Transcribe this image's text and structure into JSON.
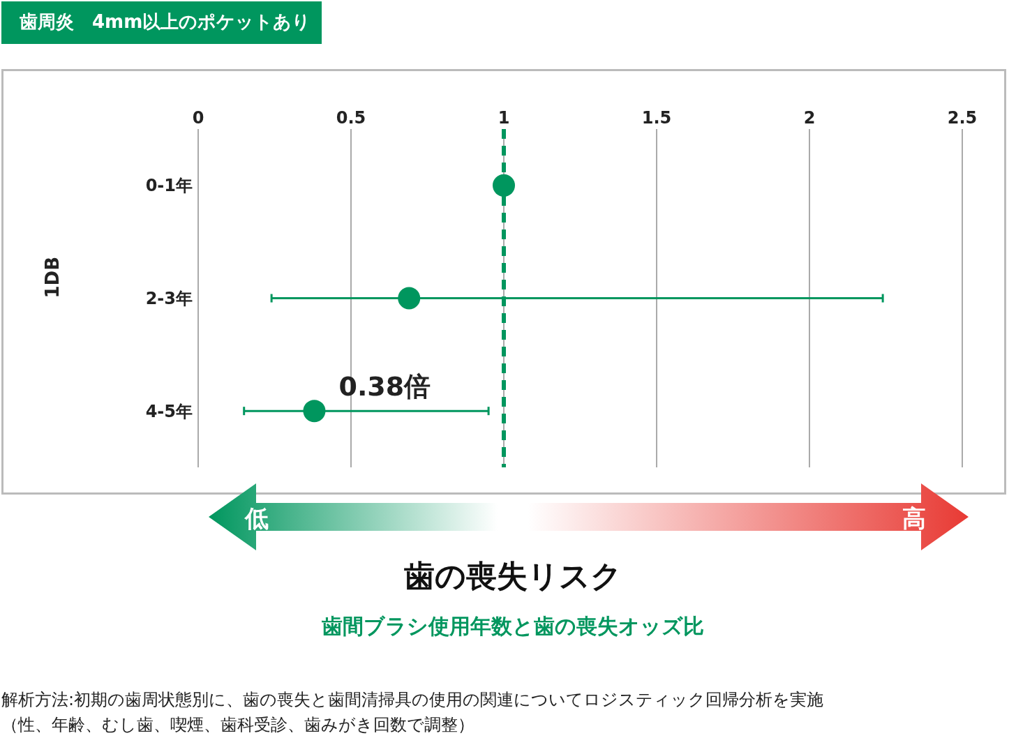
{
  "chart_data": {
    "type": "scatter",
    "orientation": "horizontal",
    "title": "歯周炎　4mm以上のポケットあり",
    "subtitle": "歯間ブラシ使用年数と歯の喪失オッズ比",
    "xlabel": "歯の喪失リスク",
    "ylabel": "1DB",
    "categories": [
      "0-1年",
      "2-3年",
      "4-5年"
    ],
    "values": [
      1,
      0.69,
      0.38
    ],
    "errors": [
      null,
      [
        0.24,
        2.24
      ],
      [
        0.15,
        0.95
      ]
    ],
    "color": "#00965e",
    "marker": "circle",
    "grid": "x",
    "xlim": [
      0,
      2.5
    ],
    "xticks": [
      0,
      0.5,
      1,
      1.5,
      2,
      2.5
    ],
    "ref_lines": [
      {
        "axis": "x",
        "value": 1,
        "color": "#00965e",
        "line_style": "dashed"
      }
    ],
    "annotations": [
      {
        "text": "0.38倍",
        "x": 0.38,
        "y": "4-5年"
      },
      "低",
      "高",
      "解析方法:初期の歯周状態別に、歯の喪失と歯間清掃具の使用の関連についてロジスティック回帰分析を実施",
      "（性、年齢、むし歯、喫煙、歯科受診、歯みがき回数で調整）"
    ]
  }
}
